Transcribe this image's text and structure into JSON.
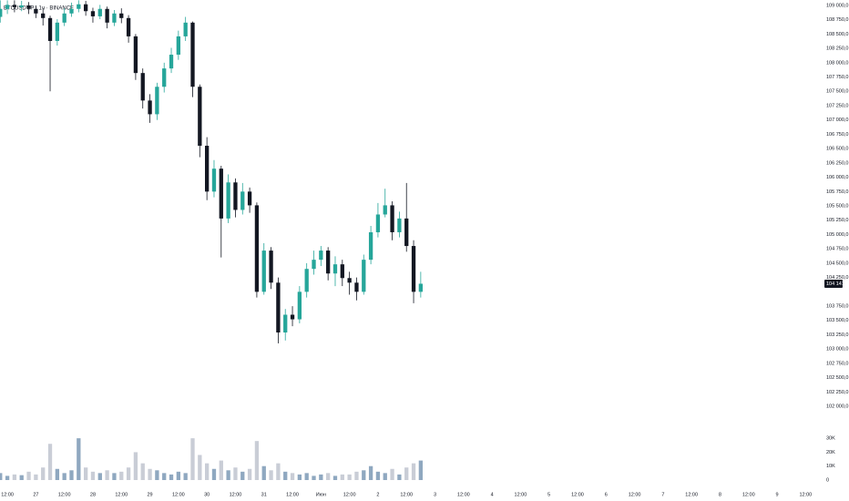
{
  "chart_data": {
    "type": "candlestick",
    "title": "BTCUSDT.P · 1ч · BINANCE",
    "up_color": "#26a69a",
    "down_color": "#131722",
    "volume_up_color": "#8fa8c0",
    "volume_down_color": "#c9cdd6",
    "x": [
      9,
      12,
      15,
      18,
      21,
      24,
      27,
      30,
      33,
      36,
      39,
      42,
      45,
      48,
      51,
      54,
      57,
      60,
      63,
      66,
      69,
      72,
      75,
      78,
      81,
      84,
      87,
      90,
      93,
      96,
      99,
      102,
      105,
      108,
      111,
      114,
      117,
      120,
      123,
      126,
      129,
      132,
      135,
      138,
      141,
      144,
      147,
      150,
      153,
      156,
      159,
      162,
      165,
      168,
      171,
      174,
      177,
      180,
      183,
      186
    ],
    "open": [
      108800,
      108940,
      109010,
      108970,
      109000,
      108940,
      108860,
      108780,
      108380,
      108700,
      108860,
      108940,
      109020,
      108900,
      108810,
      108940,
      108700,
      108860,
      108780,
      108460,
      107820,
      107340,
      107100,
      107580,
      107900,
      108140,
      108460,
      108700,
      107580,
      106550,
      105750,
      106150,
      105280,
      105910,
      105430,
      105750,
      105510,
      104000,
      104720,
      104160,
      103290,
      103600,
      103520,
      104000,
      104400,
      104560,
      104720,
      104320,
      104480,
      104240,
      104160,
      104000,
      104560,
      105040,
      105350,
      105510,
      105040,
      105280,
      104800,
      104000
    ],
    "high": [
      109090,
      109090,
      109090,
      109080,
      109060,
      109000,
      108950,
      108820,
      108760,
      108950,
      109050,
      109090,
      109080,
      108960,
      109010,
      108980,
      108920,
      108950,
      108830,
      108500,
      107900,
      107450,
      107650,
      108000,
      108260,
      108560,
      108800,
      108720,
      107620,
      106700,
      106300,
      106200,
      106050,
      105980,
      105900,
      105820,
      105560,
      104850,
      104780,
      104250,
      103700,
      103750,
      104100,
      104500,
      104720,
      104800,
      104780,
      104620,
      104560,
      104350,
      104250,
      104650,
      105150,
      105550,
      105800,
      105580,
      105400,
      105900,
      104900,
      104350
    ],
    "low": [
      108700,
      108850,
      108880,
      108900,
      108850,
      108780,
      108650,
      107500,
      108300,
      108640,
      108800,
      108880,
      108820,
      108700,
      108760,
      108600,
      108640,
      108690,
      108350,
      107700,
      107200,
      106950,
      107000,
      107480,
      107820,
      108050,
      108380,
      107400,
      106350,
      105600,
      105650,
      104600,
      105200,
      105300,
      105350,
      105380,
      103900,
      103950,
      104050,
      103100,
      103150,
      103400,
      103450,
      103900,
      104300,
      104450,
      104200,
      104100,
      104100,
      103950,
      103850,
      103950,
      104480,
      104950,
      105300,
      104900,
      104950,
      104700,
      103800,
      103900
    ],
    "close": [
      108940,
      109010,
      108970,
      109000,
      108940,
      108860,
      108780,
      108380,
      108700,
      108860,
      108940,
      109020,
      108900,
      108810,
      108940,
      108700,
      108860,
      108780,
      108460,
      107820,
      107340,
      107100,
      107580,
      107900,
      108140,
      108460,
      108700,
      107580,
      106550,
      105750,
      106150,
      105280,
      105910,
      105430,
      105750,
      105510,
      104000,
      104720,
      104160,
      103290,
      103600,
      103520,
      104000,
      104400,
      104560,
      104720,
      104320,
      104480,
      104240,
      104160,
      104000,
      104560,
      105040,
      105350,
      105510,
      105040,
      105280,
      104800,
      104000,
      104141
    ],
    "volume": [
      5000,
      3000,
      4000,
      3500,
      6000,
      4000,
      9000,
      26000,
      8000,
      5000,
      7000,
      30000,
      9000,
      6000,
      5000,
      7000,
      5000,
      6000,
      9000,
      20000,
      12000,
      8000,
      7000,
      5000,
      4000,
      6000,
      5000,
      30000,
      18000,
      12000,
      8000,
      14000,
      7000,
      9000,
      6000,
      8000,
      28000,
      10000,
      7000,
      12000,
      6000,
      5000,
      4000,
      5000,
      3000,
      4000,
      5000,
      3000,
      4000,
      4000,
      6000,
      7000,
      10000,
      6000,
      5000,
      8000,
      4000,
      9000,
      12000,
      14000
    ],
    "last_price": {
      "value": 104141,
      "label": "104 141"
    },
    "xlim": [
      8.9,
      354
    ],
    "xticks": [
      {
        "value": 12,
        "label": "12:00"
      },
      {
        "value": 24,
        "label": "27"
      },
      {
        "value": 36,
        "label": "12:00"
      },
      {
        "value": 48,
        "label": "28"
      },
      {
        "value": 60,
        "label": "12:00"
      },
      {
        "value": 72,
        "label": "29"
      },
      {
        "value": 84,
        "label": "12:00"
      },
      {
        "value": 96,
        "label": "30"
      },
      {
        "value": 108,
        "label": "12:00"
      },
      {
        "value": 120,
        "label": "31"
      },
      {
        "value": 132,
        "label": "12:00"
      },
      {
        "value": 144,
        "label": "Июн"
      },
      {
        "value": 156,
        "label": "12:00"
      },
      {
        "value": 168,
        "label": "2"
      },
      {
        "value": 180,
        "label": "12:00"
      },
      {
        "value": 192,
        "label": "3"
      },
      {
        "value": 204,
        "label": "12:00"
      },
      {
        "value": 216,
        "label": "4"
      },
      {
        "value": 228,
        "label": "12:00"
      },
      {
        "value": 240,
        "label": "5"
      },
      {
        "value": 252,
        "label": "12:00"
      },
      {
        "value": 264,
        "label": "6"
      },
      {
        "value": 276,
        "label": "12:00"
      },
      {
        "value": 288,
        "label": "7"
      },
      {
        "value": 300,
        "label": "12:00"
      },
      {
        "value": 312,
        "label": "8"
      },
      {
        "value": 324,
        "label": "12:00"
      },
      {
        "value": 336,
        "label": "9"
      },
      {
        "value": 348,
        "label": "12:00"
      }
    ],
    "ylim": [
      101620,
      109095
    ],
    "yticks": [
      {
        "value": 109000,
        "label": "109 000,0"
      },
      {
        "value": 108750,
        "label": "108 750,0"
      },
      {
        "value": 108500,
        "label": "108 500,0"
      },
      {
        "value": 108250,
        "label": "108 250,0"
      },
      {
        "value": 108000,
        "label": "108 000,0"
      },
      {
        "value": 107750,
        "label": "107 750,0"
      },
      {
        "value": 107500,
        "label": "107 500,0"
      },
      {
        "value": 107250,
        "label": "107 250,0"
      },
      {
        "value": 107000,
        "label": "107 000,0"
      },
      {
        "value": 106750,
        "label": "106 750,0"
      },
      {
        "value": 106500,
        "label": "106 500,0"
      },
      {
        "value": 106250,
        "label": "106 250,0"
      },
      {
        "value": 106000,
        "label": "106 000,0"
      },
      {
        "value": 105750,
        "label": "105 750,0"
      },
      {
        "value": 105500,
        "label": "105 500,0"
      },
      {
        "value": 105250,
        "label": "105 250,0"
      },
      {
        "value": 105000,
        "label": "105 000,0"
      },
      {
        "value": 104750,
        "label": "104 750,0"
      },
      {
        "value": 104500,
        "label": "104 500,0"
      },
      {
        "value": 104250,
        "label": "104 250,0"
      },
      {
        "value": 103750,
        "label": "103 750,0"
      },
      {
        "value": 103500,
        "label": "103 500,0"
      },
      {
        "value": 103250,
        "label": "103 250,0"
      },
      {
        "value": 103000,
        "label": "103 000,0"
      },
      {
        "value": 102750,
        "label": "102 750,0"
      },
      {
        "value": 102500,
        "label": "102 500,0"
      },
      {
        "value": 102250,
        "label": "102 250,0"
      },
      {
        "value": 102000,
        "label": "102 000,0"
      }
    ],
    "volume_ylim": [
      0,
      34000
    ],
    "volume_ticks": [
      {
        "value": 30000,
        "label": "30K"
      },
      {
        "value": 20000,
        "label": "20K"
      },
      {
        "value": 10000,
        "label": "10K"
      },
      0
    ]
  }
}
